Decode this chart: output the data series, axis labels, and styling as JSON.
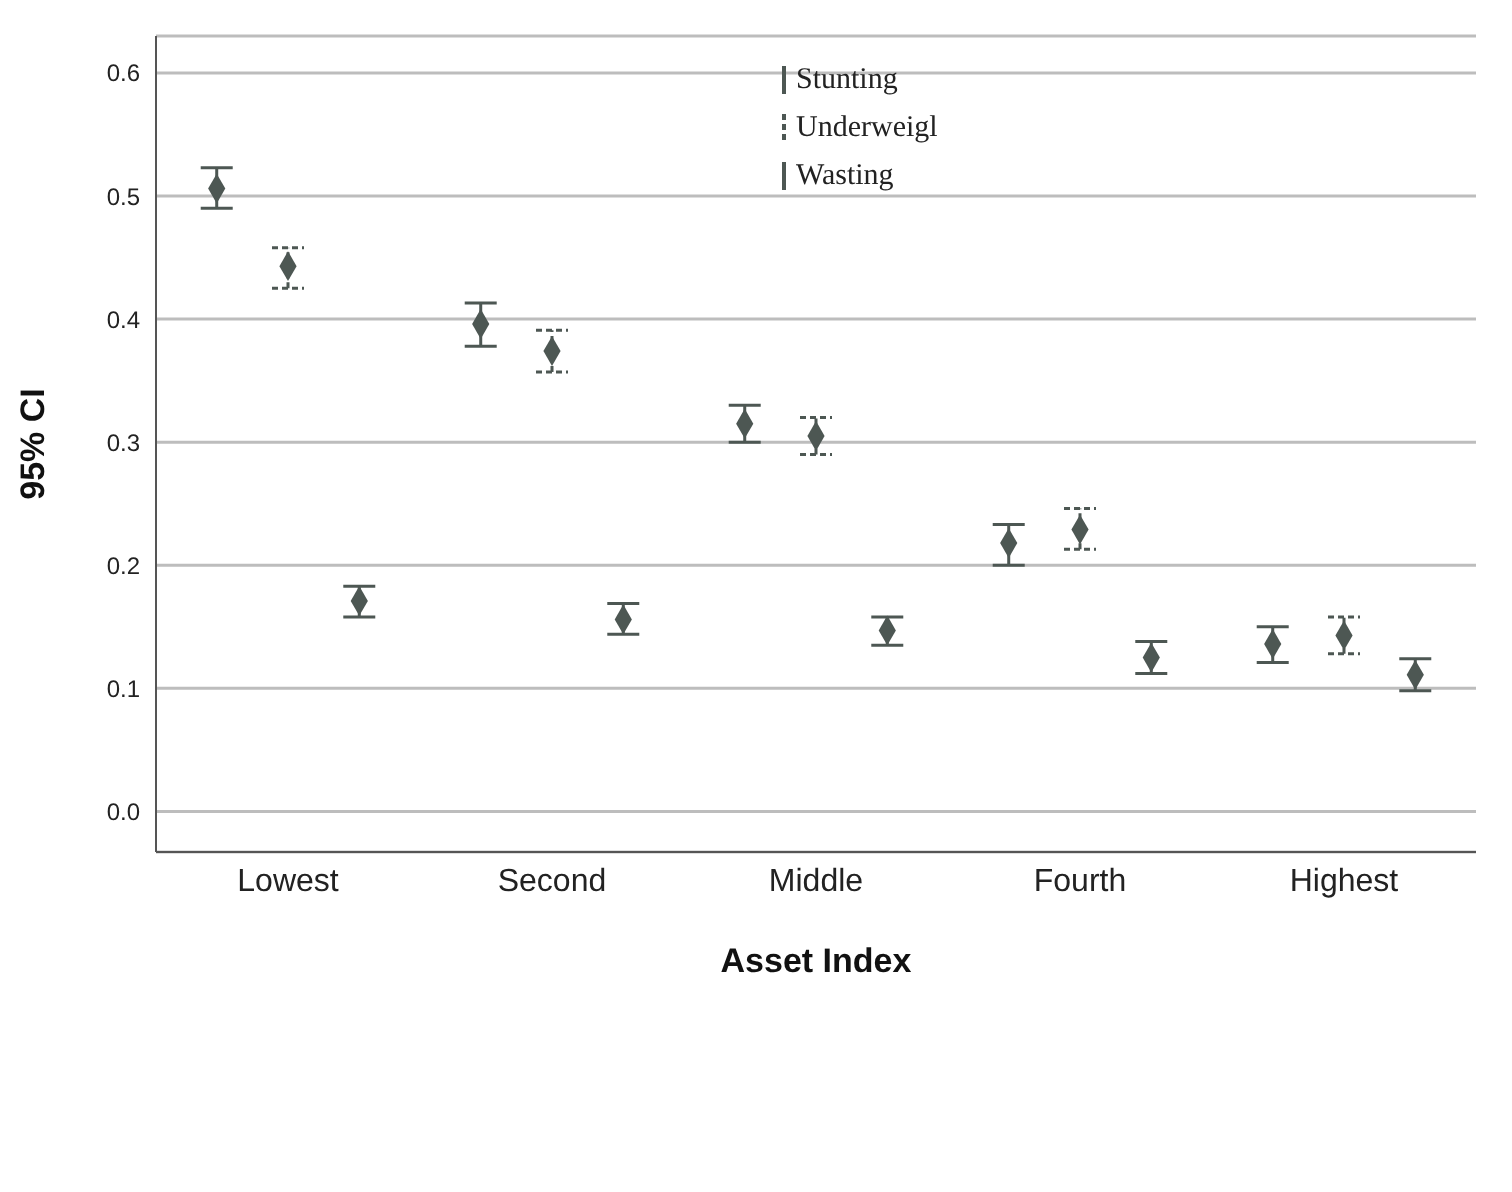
{
  "chart_data": {
    "type": "scatter",
    "xlabel": "Asset Index",
    "ylabel": "95% CI",
    "categories": [
      "Lowest",
      "Second",
      "Middle",
      "Fourth",
      "Highest"
    ],
    "ylim": [
      -0.033,
      0.63
    ],
    "yticks": [
      {
        "value": 0,
        "label": "0.0"
      },
      0.1,
      0.2,
      0.3,
      0.4,
      0.5,
      0.6
    ],
    "grid": "y",
    "legend": "top",
    "marker": "diamond",
    "series": [
      {
        "name": "Stunting",
        "color": "#4d5753",
        "line_style": "solid",
        "values": [
          0.506,
          0.396,
          0.315,
          0.218,
          0.136
        ],
        "errors": [
          [
            0.49,
            0.523
          ],
          [
            0.378,
            0.413
          ],
          [
            0.3,
            0.33
          ],
          [
            0.2,
            0.233
          ],
          [
            0.121,
            0.15
          ]
        ]
      },
      {
        "name": "Underweigl",
        "color": "#4d5753",
        "line_style": "dashed",
        "values": [
          0.443,
          0.374,
          0.305,
          0.229,
          0.143
        ],
        "errors": [
          [
            0.425,
            0.458
          ],
          [
            0.357,
            0.391
          ],
          [
            0.29,
            0.32
          ],
          [
            0.213,
            0.246
          ],
          [
            0.128,
            0.158
          ]
        ]
      },
      {
        "name": "Wasting",
        "color": "#4d5753",
        "line_style": "solid",
        "values": [
          0.171,
          0.156,
          0.147,
          0.125,
          0.111
        ],
        "errors": [
          [
            0.158,
            0.183
          ],
          [
            0.144,
            0.169
          ],
          [
            0.135,
            0.158
          ],
          [
            0.112,
            0.138
          ],
          [
            0.098,
            0.124
          ]
        ]
      }
    ]
  }
}
